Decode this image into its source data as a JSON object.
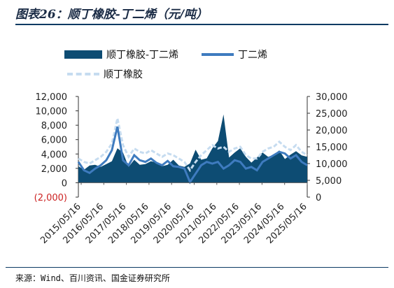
{
  "page": {
    "title": "图表26：顺丁橡胶-丁二烯（元/吨）",
    "source": "来源：Wind、百川资讯、国金证券研究所"
  },
  "chart_data": {
    "type": "area",
    "title": "",
    "legend": {
      "placement": "top",
      "entries": [
        "顺丁橡胶-丁二烯",
        "丁二烯",
        "顺丁橡胶"
      ]
    },
    "colors": {
      "spread": "#0d4c73",
      "butadiene": "#3e7bbf",
      "rubber": "#c6dcf0"
    },
    "x_ticks": [
      "2015/05/16",
      "2016/05/16",
      "2017/05/16",
      "2018/05/16",
      "2019/05/16",
      "2020/05/16",
      "2021/05/16",
      "2022/05/16",
      "2023/05/16",
      "2024/05/16",
      "2025/05/16"
    ],
    "y_left": {
      "ylim": [
        -2000,
        12000
      ],
      "ticks": [
        "(2,000)",
        "0",
        "2,000",
        "4,000",
        "6,000",
        "8,000",
        "10,000",
        "12,000"
      ],
      "tick_values": [
        -2000,
        0,
        2000,
        4000,
        6000,
        8000,
        10000,
        12000
      ]
    },
    "y_right": {
      "ylim": [
        0,
        30000
      ],
      "ticks": [
        "0",
        "5,000",
        "10,000",
        "15,000",
        "20,000",
        "25,000",
        "30,000"
      ],
      "tick_values": [
        0,
        5000,
        10000,
        15000,
        20000,
        25000,
        30000
      ]
    },
    "x": [
      "2015/05",
      "2015/08",
      "2015/11",
      "2016/02",
      "2016/05",
      "2016/08",
      "2016/11",
      "2017/02",
      "2017/05",
      "2017/08",
      "2017/11",
      "2018/02",
      "2018/05",
      "2018/08",
      "2018/11",
      "2019/02",
      "2019/05",
      "2019/08",
      "2019/11",
      "2020/02",
      "2020/05",
      "2020/08",
      "2020/11",
      "2021/02",
      "2021/05",
      "2021/08",
      "2021/11",
      "2022/02",
      "2022/05",
      "2022/08",
      "2022/11",
      "2023/02",
      "2023/05",
      "2023/08",
      "2023/11",
      "2024/02",
      "2024/05",
      "2024/08",
      "2024/11",
      "2025/02",
      "2025/05",
      "2025/08"
    ],
    "series": [
      {
        "name": "顺丁橡胶-丁二烯",
        "axis": "left",
        "values": [
          2300,
          1800,
          2400,
          2500,
          2200,
          2600,
          3000,
          4800,
          4200,
          2200,
          3200,
          2500,
          2600,
          3000,
          2800,
          2300,
          2500,
          3200,
          2400,
          2200,
          2700,
          4600,
          3200,
          3400,
          4800,
          5800,
          9500,
          3500,
          4200,
          4800,
          3600,
          2800,
          3500,
          4200,
          3600,
          3900,
          4500,
          3300,
          3900,
          4400,
          3800,
          3600
        ]
      },
      {
        "name": "丁二烯",
        "axis": "right",
        "values": [
          10500,
          8000,
          7200,
          8500,
          9500,
          11000,
          14000,
          21000,
          11000,
          9500,
          12500,
          11000,
          10500,
          11500,
          10200,
          9500,
          10800,
          9200,
          9000,
          8500,
          4500,
          7000,
          9500,
          10500,
          10000,
          10500,
          8500,
          9500,
          11000,
          10500,
          8500,
          9000,
          8000,
          10500,
          11500,
          12500,
          13500,
          13000,
          11500,
          12500,
          10500,
          9500
        ]
      },
      {
        "name": "顺丁橡胶",
        "axis": "right",
        "values": [
          11500,
          10500,
          10000,
          11000,
          12000,
          13500,
          16000,
          23500,
          15500,
          12000,
          14500,
          13500,
          13000,
          14000,
          13000,
          12000,
          13000,
          12500,
          11500,
          10500,
          8000,
          10500,
          12500,
          14000,
          15500,
          14500,
          15000,
          13500,
          14500,
          15000,
          12500,
          11500,
          11500,
          13500,
          14500,
          15000,
          16500,
          15000,
          14000,
          15500,
          13500,
          12500
        ]
      }
    ]
  }
}
